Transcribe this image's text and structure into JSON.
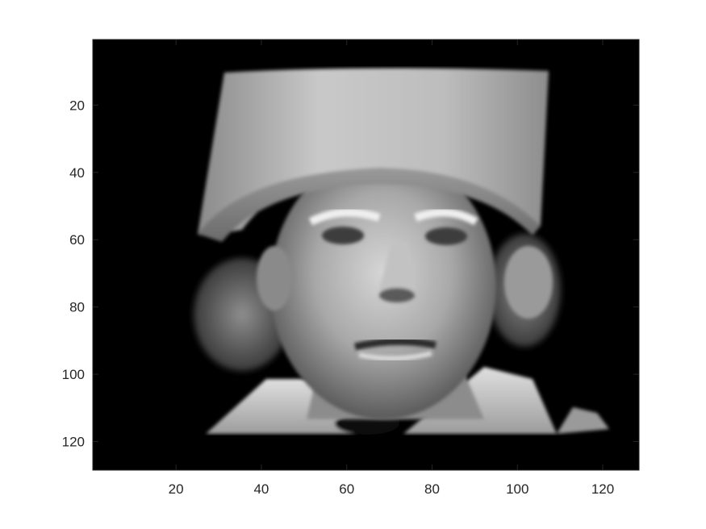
{
  "figure": {
    "image_description_icon": "grayscale-face-portrait",
    "colormap": "gray",
    "background_color": "#ffffff",
    "axes_color": "#262626",
    "image_background_color": "#000000"
  },
  "axes": {
    "xlim": [
      0.5,
      128.5
    ],
    "ylim": [
      0.5,
      128.5
    ],
    "y_direction": "reverse",
    "xticks": [
      20,
      40,
      60,
      80,
      100,
      120
    ],
    "yticks": [
      20,
      40,
      60,
      80,
      100,
      120
    ],
    "xtick_labels": [
      "20",
      "40",
      "60",
      "80",
      "100",
      "120"
    ],
    "ytick_labels": [
      "20",
      "40",
      "60",
      "80",
      "100",
      "120"
    ]
  }
}
